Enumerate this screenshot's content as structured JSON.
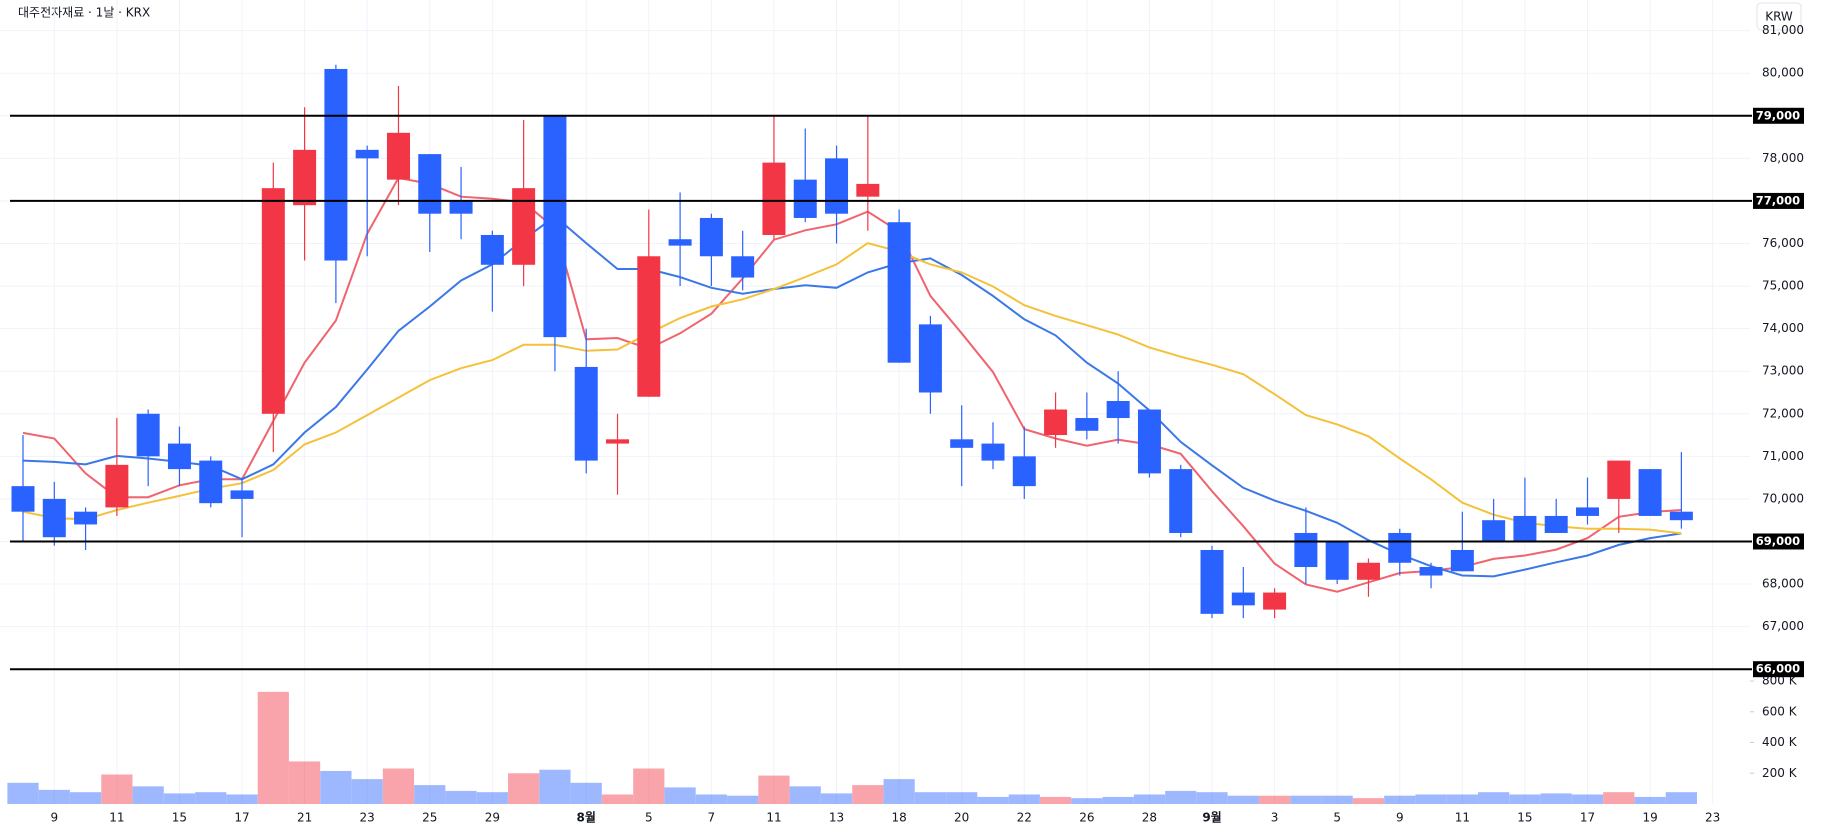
{
  "chart_data": {
    "type": "candlestick",
    "title": "대주전자재료 · 1날 · KRX",
    "currency_button": "KRW",
    "categories": [
      null,
      "9",
      null,
      "11",
      null,
      "15",
      null,
      "17",
      null,
      "21",
      null,
      "23",
      null,
      "25",
      null,
      "29",
      null,
      null,
      "8월",
      null,
      "5",
      null,
      "7",
      null,
      "11",
      null,
      "13",
      null,
      "18",
      null,
      "20",
      null,
      "22",
      null,
      "26",
      null,
      "28",
      null,
      "9월",
      null,
      "3",
      null,
      "5",
      null,
      "9",
      null,
      "11",
      null,
      "15",
      null,
      "17",
      null,
      "19",
      null,
      "23"
    ],
    "open": [
      70300,
      70000,
      69700,
      69800,
      72000,
      71300,
      70900,
      70200,
      72000,
      76900,
      80100,
      78200,
      77500,
      78100,
      77000,
      76200,
      75500,
      79000,
      73100,
      71300,
      72400,
      76100,
      76600,
      75700,
      76200,
      77500,
      78000,
      77100,
      76500,
      74100,
      71400,
      71300,
      71000,
      71500,
      71900,
      72300,
      72100,
      70700,
      68800,
      67800,
      67400,
      69200,
      69000,
      68100,
      69200,
      68400,
      68800,
      69500,
      69600,
      69600,
      69800,
      70000,
      70700,
      69700,
      null
    ],
    "high": [
      71500,
      70400,
      69800,
      71900,
      72100,
      71700,
      71000,
      70500,
      77900,
      79200,
      80200,
      78300,
      79700,
      78100,
      77800,
      76300,
      78900,
      79000,
      74000,
      72000,
      76800,
      77200,
      76700,
      76300,
      79000,
      78700,
      78300,
      79000,
      76800,
      74300,
      72200,
      71800,
      71700,
      72500,
      72500,
      73000,
      72100,
      70800,
      68900,
      68400,
      67900,
      69800,
      69000,
      68600,
      69300,
      68500,
      69700,
      70000,
      70500,
      70000,
      70500,
      70900,
      70700,
      71100,
      null
    ],
    "low": [
      69000,
      68900,
      68800,
      69600,
      70300,
      70300,
      69800,
      69100,
      71100,
      75600,
      74600,
      75700,
      76900,
      75800,
      76100,
      74400,
      75000,
      73000,
      70600,
      70100,
      72400,
      75000,
      75000,
      74900,
      76100,
      76500,
      76000,
      76300,
      73200,
      72000,
      70300,
      70700,
      70000,
      71200,
      71400,
      71300,
      70500,
      69100,
      67200,
      67200,
      67200,
      68000,
      68000,
      67700,
      68200,
      67900,
      68300,
      69000,
      69000,
      69200,
      69400,
      69200,
      69600,
      69300,
      null
    ],
    "close": [
      69700,
      69100,
      69400,
      70800,
      71000,
      70700,
      69900,
      70000,
      77300,
      78200,
      75600,
      78000,
      78600,
      76700,
      76700,
      75500,
      77300,
      73800,
      70900,
      71400,
      75700,
      75950,
      75700,
      75200,
      77900,
      76600,
      76700,
      77400,
      73200,
      72500,
      71200,
      70900,
      70300,
      72100,
      71600,
      71900,
      70600,
      69200,
      67300,
      67500,
      67800,
      68400,
      68100,
      68500,
      68500,
      68200,
      68300,
      69000,
      69000,
      69200,
      69600,
      70900,
      69600,
      69500,
      null
    ],
    "volume": [
      138000,
      92000,
      77000,
      192000,
      115000,
      69000,
      77000,
      62000,
      730000,
      277000,
      215000,
      162000,
      231000,
      123000,
      85000,
      77000,
      200000,
      223000,
      138000,
      62000,
      231000,
      108000,
      62000,
      54000,
      185000,
      115000,
      69000,
      123000,
      162000,
      77000,
      77000,
      46000,
      62000,
      46000,
      38000,
      46000,
      62000,
      85000,
      77000,
      54000,
      54000,
      54000,
      54000,
      38000,
      54000,
      62000,
      62000,
      77000,
      62000,
      69000,
      62000,
      77000,
      46000,
      77000,
      null
    ],
    "up_color": "#f23645",
    "down_color": "#2962ff",
    "lines": [
      {
        "color": "#f0646e",
        "values": [
          71550,
          71420,
          70600,
          70040,
          70040,
          70320,
          70460,
          70460,
          71830,
          73200,
          74190,
          76230,
          77540,
          77400,
          77100,
          77050,
          76970,
          76360,
          73750,
          73780,
          73530,
          73890,
          74350,
          75180,
          76090,
          76310,
          76450,
          76750,
          76280,
          74770,
          73890,
          72980,
          71640,
          71420,
          71250,
          71390,
          71280,
          71060,
          70180,
          69360,
          68480,
          67990,
          67820,
          68040,
          68260,
          68310,
          68400,
          68590,
          68670,
          68810,
          69080,
          69580,
          69690,
          69740,
          null
        ]
      },
      {
        "color": "#3b78e7",
        "values": [
          70900,
          70870,
          70810,
          71010,
          70950,
          70870,
          70780,
          70460,
          70810,
          71560,
          72160,
          73040,
          73950,
          74520,
          75130,
          75510,
          76090,
          76640,
          76010,
          75400,
          75400,
          75210,
          74960,
          74820,
          74930,
          75020,
          74960,
          75320,
          75540,
          75650,
          75260,
          74770,
          74220,
          73840,
          73200,
          72710,
          72080,
          71340,
          70790,
          70260,
          69960,
          69720,
          69440,
          69030,
          68700,
          68420,
          68200,
          68180,
          68340,
          68510,
          68670,
          68920,
          69080,
          69190,
          null
        ]
      },
      {
        "color": "#f5c13a",
        "values": [
          69700,
          69550,
          69520,
          69740,
          69910,
          70070,
          70240,
          70370,
          70680,
          71280,
          71560,
          71970,
          72380,
          72790,
          73070,
          73260,
          73620,
          73620,
          73480,
          73510,
          73890,
          74250,
          74520,
          74690,
          74930,
          75210,
          75510,
          76010,
          75810,
          75510,
          75320,
          74990,
          74550,
          74300,
          74080,
          73860,
          73560,
          73340,
          73150,
          72930,
          72460,
          71970,
          71750,
          71470,
          70950,
          70460,
          69910,
          69630,
          69440,
          69360,
          69300,
          69300,
          69280,
          69190,
          null
        ]
      }
    ],
    "ylim": [
      65840,
      81720
    ],
    "yticks": [
      {
        "value": 67000,
        "label": "67,000"
      },
      {
        "value": 68000,
        "label": "68,000"
      },
      {
        "value": 69000,
        "label": "69,000"
      },
      {
        "value": 70000,
        "label": "70,000"
      },
      {
        "value": 71000,
        "label": "71,000"
      },
      {
        "value": 72000,
        "label": "72,000"
      },
      {
        "value": 73000,
        "label": "73,000"
      },
      {
        "value": 74000,
        "label": "74,000"
      },
      {
        "value": 75000,
        "label": "75,000"
      },
      {
        "value": 76000,
        "label": "76,000"
      },
      {
        "value": 77000,
        "label": "77,000"
      },
      {
        "value": 78000,
        "label": "78,000"
      },
      {
        "value": 79000,
        "label": "79,000"
      },
      {
        "value": 80000,
        "label": "80,000"
      },
      {
        "value": 81000,
        "label": "81,000"
      }
    ],
    "hlines": [
      {
        "value": 79000,
        "label": "79,000"
      },
      {
        "value": 77000,
        "label": "77,000"
      },
      {
        "value": 69000,
        "label": "69,000"
      },
      {
        "value": 66000,
        "label": "66,000"
      }
    ],
    "volume_ylim": [
      0,
      820000
    ],
    "volume_ticks": [
      {
        "value": 200000,
        "label": "200 K"
      },
      {
        "value": 400000,
        "label": "400 K"
      },
      {
        "value": 600000,
        "label": "600 K"
      },
      {
        "value": 800000,
        "label": "800 K"
      }
    ],
    "grid": true
  }
}
